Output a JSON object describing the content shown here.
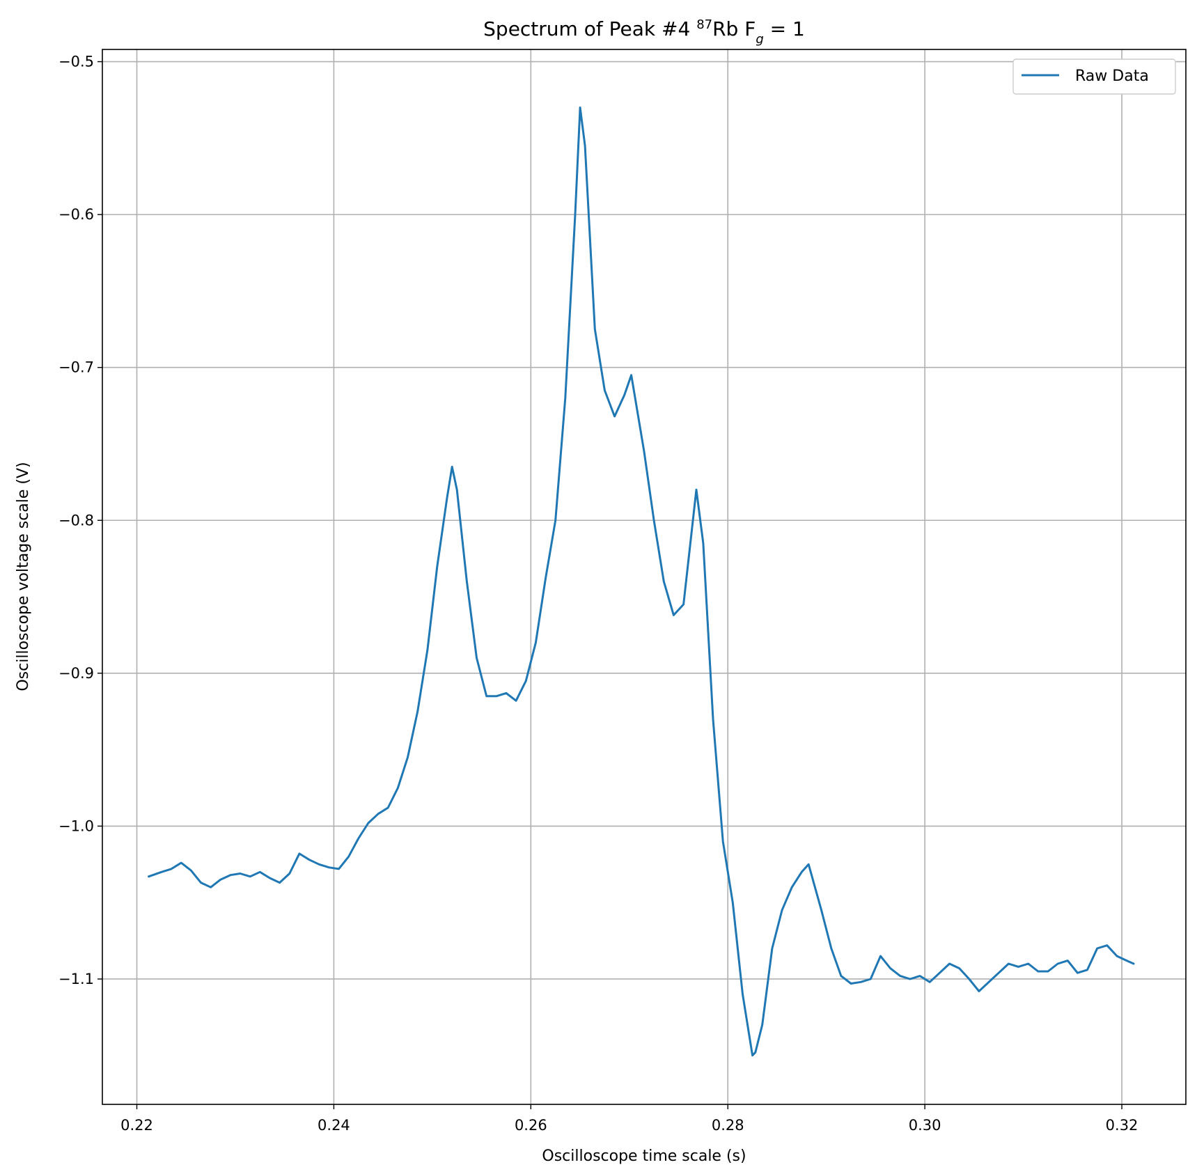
{
  "chart_data": {
    "type": "line",
    "title": "Spectrum of Peak #4",
    "title_sup": "87",
    "title_element": "Rb F",
    "title_sub": "g",
    "title_suffix": " = 1",
    "xlabel": "Oscilloscope time scale (s)",
    "ylabel": "Oscilloscope voltage scale (V)",
    "xlim": [
      0.2165,
      0.3265
    ],
    "ylim": [
      -1.182,
      -0.492
    ],
    "xticks": [
      0.22,
      0.24,
      0.26,
      0.28,
      0.3,
      0.32
    ],
    "xtick_labels": [
      "0.22",
      "0.24",
      "0.26",
      "0.28",
      "0.30",
      "0.32"
    ],
    "yticks": [
      -0.5,
      -0.6,
      -0.7,
      -0.8,
      -0.9,
      -1.0,
      -1.1
    ],
    "ytick_labels": [
      "−0.5",
      "−0.6",
      "−0.7",
      "−0.8",
      "−0.9",
      "−1.0",
      "−1.1"
    ],
    "grid": true,
    "legend_position": "top-right",
    "series": [
      {
        "name": "Raw Data",
        "color": "#1f77b4",
        "x": [
          0.2212,
          0.2225,
          0.2235,
          0.2245,
          0.2255,
          0.2265,
          0.2275,
          0.2285,
          0.2295,
          0.2305,
          0.2315,
          0.2325,
          0.2335,
          0.2345,
          0.2355,
          0.2365,
          0.2375,
          0.2385,
          0.2395,
          0.2405,
          0.2415,
          0.2425,
          0.2435,
          0.2445,
          0.2455,
          0.2465,
          0.2475,
          0.2485,
          0.2495,
          0.2505,
          0.2515,
          0.252,
          0.2525,
          0.2535,
          0.2545,
          0.2555,
          0.2565,
          0.2575,
          0.2585,
          0.2595,
          0.2605,
          0.2615,
          0.2625,
          0.2635,
          0.2645,
          0.265,
          0.2655,
          0.2665,
          0.2675,
          0.2685,
          0.2695,
          0.2702,
          0.2715,
          0.2725,
          0.2735,
          0.2745,
          0.2755,
          0.2768,
          0.2775,
          0.2785,
          0.2795,
          0.2805,
          0.2815,
          0.2825,
          0.2828,
          0.2835,
          0.2845,
          0.2855,
          0.2865,
          0.2875,
          0.2882,
          0.2895,
          0.2905,
          0.2915,
          0.2925,
          0.2935,
          0.2945,
          0.2955,
          0.2965,
          0.2975,
          0.2985,
          0.2995,
          0.3005,
          0.3015,
          0.3025,
          0.3035,
          0.3045,
          0.3055,
          0.3065,
          0.3075,
          0.3085,
          0.3095,
          0.3105,
          0.3115,
          0.3125,
          0.3135,
          0.3145,
          0.3155,
          0.3165,
          0.3175,
          0.3185,
          0.3195,
          0.3205,
          0.3212
        ],
        "y": [
          -1.033,
          -1.03,
          -1.028,
          -1.024,
          -1.029,
          -1.037,
          -1.04,
          -1.035,
          -1.032,
          -1.031,
          -1.033,
          -1.03,
          -1.034,
          -1.037,
          -1.031,
          -1.018,
          -1.022,
          -1.025,
          -1.027,
          -1.028,
          -1.02,
          -1.008,
          -0.998,
          -0.992,
          -0.988,
          -0.975,
          -0.955,
          -0.925,
          -0.885,
          -0.83,
          -0.785,
          -0.765,
          -0.78,
          -0.84,
          -0.89,
          -0.915,
          -0.915,
          -0.913,
          -0.918,
          -0.905,
          -0.88,
          -0.838,
          -0.8,
          -0.72,
          -0.6,
          -0.53,
          -0.555,
          -0.675,
          -0.715,
          -0.732,
          -0.718,
          -0.705,
          -0.755,
          -0.8,
          -0.84,
          -0.862,
          -0.855,
          -0.78,
          -0.815,
          -0.93,
          -1.01,
          -1.05,
          -1.11,
          -1.15,
          -1.148,
          -1.13,
          -1.08,
          -1.055,
          -1.04,
          -1.03,
          -1.025,
          -1.055,
          -1.08,
          -1.098,
          -1.103,
          -1.102,
          -1.1,
          -1.085,
          -1.093,
          -1.098,
          -1.1,
          -1.098,
          -1.102,
          -1.096,
          -1.09,
          -1.093,
          -1.1,
          -1.108,
          -1.102,
          -1.096,
          -1.09,
          -1.092,
          -1.09,
          -1.095,
          -1.095,
          -1.09,
          -1.088,
          -1.096,
          -1.094,
          -1.08,
          -1.078,
          -1.085,
          -1.088,
          -1.09
        ]
      }
    ]
  }
}
